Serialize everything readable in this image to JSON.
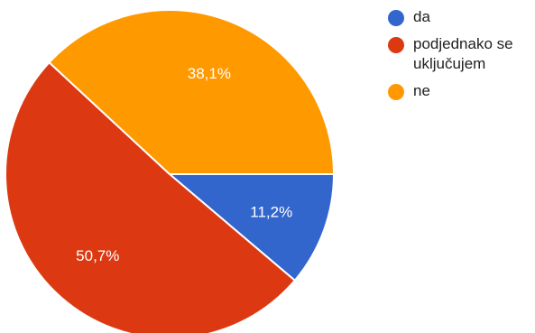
{
  "chart_data": {
    "type": "pie",
    "slices": [
      {
        "label": "da",
        "value": 11.2,
        "display": "11,2%",
        "color": "#3366cc"
      },
      {
        "label": "podjednako se uključujem",
        "value": 50.7,
        "display": "50,7%",
        "color": "#dc3912"
      },
      {
        "label": "ne",
        "value": 38.1,
        "display": "38,1%",
        "color": "#ff9900"
      }
    ],
    "start_direction": "3-o'clock",
    "direction": "clockwise",
    "legend_position": "right"
  }
}
